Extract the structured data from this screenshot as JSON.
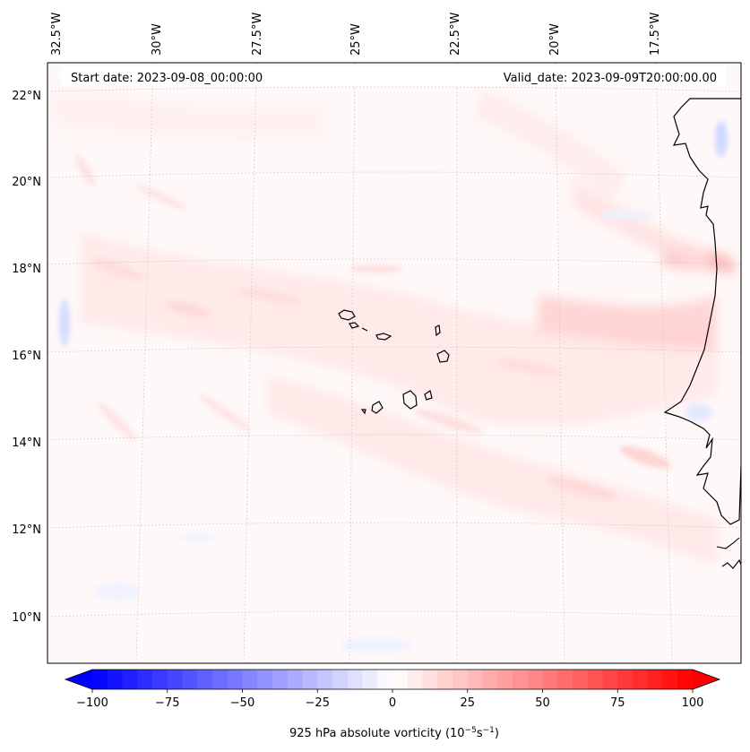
{
  "map": {
    "header_left": "Start date: 2023-09-08_00:00:00",
    "header_right": "Valid_date: 2023-09-09T20:00:00.00",
    "lon_ticks": [
      "32.5°W",
      "30°W",
      "27.5°W",
      "25°W",
      "22.5°W",
      "20°W",
      "17.5°W"
    ],
    "lat_ticks": [
      "22°N",
      "20°N",
      "18°N",
      "16°N",
      "14°N",
      "12°N",
      "10°N"
    ],
    "colors": {
      "neg": "#0000ff",
      "zero": "#ffffff",
      "pos": "#ff0000",
      "coast": "#000000"
    }
  },
  "colorbar": {
    "min": -100,
    "max": 100,
    "levels": 41,
    "tick_values": [
      -100,
      -75,
      -50,
      -25,
      0,
      25,
      50,
      75,
      100
    ],
    "tick_labels": [
      "−100",
      "−75",
      "−50",
      "−25",
      "0",
      "25",
      "50",
      "75",
      "100"
    ],
    "label": "925 hPa absolute vorticity (10",
    "label_exp1": "−5",
    "label_mid": "s",
    "label_exp2": "−1",
    "label_end": ")"
  }
}
